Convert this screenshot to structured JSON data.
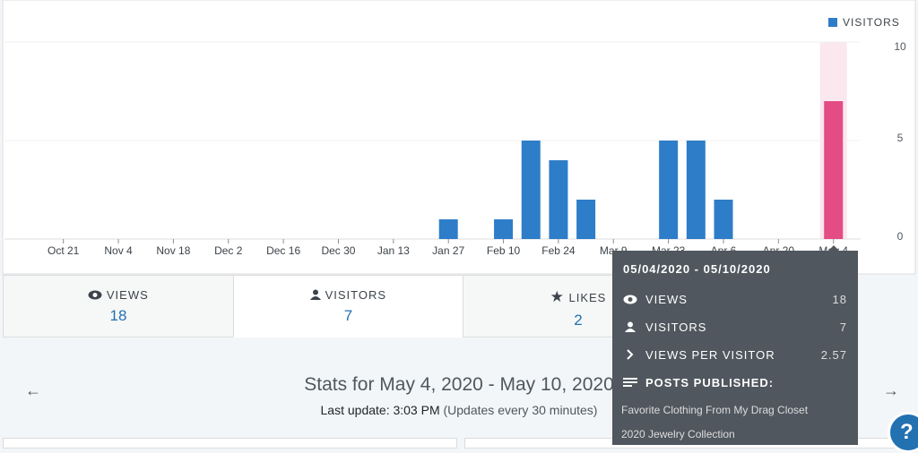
{
  "chart_data": {
    "type": "bar",
    "legend": "VISITORS",
    "categories": [
      null,
      "Oct 21",
      null,
      "Nov 4",
      null,
      "Nov 18",
      null,
      "Dec 2",
      null,
      "Dec 16",
      null,
      "Dec 30",
      null,
      "Jan 13",
      null,
      "Jan 27",
      null,
      "Feb 10",
      null,
      "Feb 24",
      null,
      "Mar 9",
      null,
      "Mar 23",
      null,
      "Apr 6",
      null,
      "Apr 20",
      null,
      "May 4"
    ],
    "values": [
      0,
      0,
      0,
      0,
      0,
      0,
      0,
      0,
      0,
      0,
      0,
      0,
      0,
      0,
      0,
      1,
      0,
      1,
      5,
      4,
      2,
      0,
      0,
      5,
      5,
      2,
      0,
      0,
      0,
      7
    ],
    "color": "#2e7dc8",
    "highlight_color": "#e34c84",
    "highlight_index": 29,
    "ylim": [
      0,
      10
    ],
    "yticks": [
      0,
      5,
      10
    ],
    "grid": true
  },
  "tabs": [
    {
      "label": "VIEWS",
      "value": "18"
    },
    {
      "label": "VISITORS",
      "value": "7"
    },
    {
      "label": "LIKES",
      "value": "2"
    }
  ],
  "tooltip": {
    "date": "05/04/2020 - 05/10/2020",
    "rows": [
      {
        "label": "VIEWS",
        "value": "18"
      },
      {
        "label": "VISITORS",
        "value": "7"
      },
      {
        "label": "VIEWS PER VISITOR",
        "value": "2.57"
      }
    ],
    "posts_heading": "POSTS PUBLISHED:",
    "posts": [
      "Favorite Clothing From My Drag Closet",
      "2020 Jewelry Collection"
    ]
  },
  "stats": {
    "title": "Stats for May 4, 2020 - May 10, 2020",
    "last_update": "Last update: 3:03 PM",
    "note": "(Updates every 30 minutes)"
  }
}
